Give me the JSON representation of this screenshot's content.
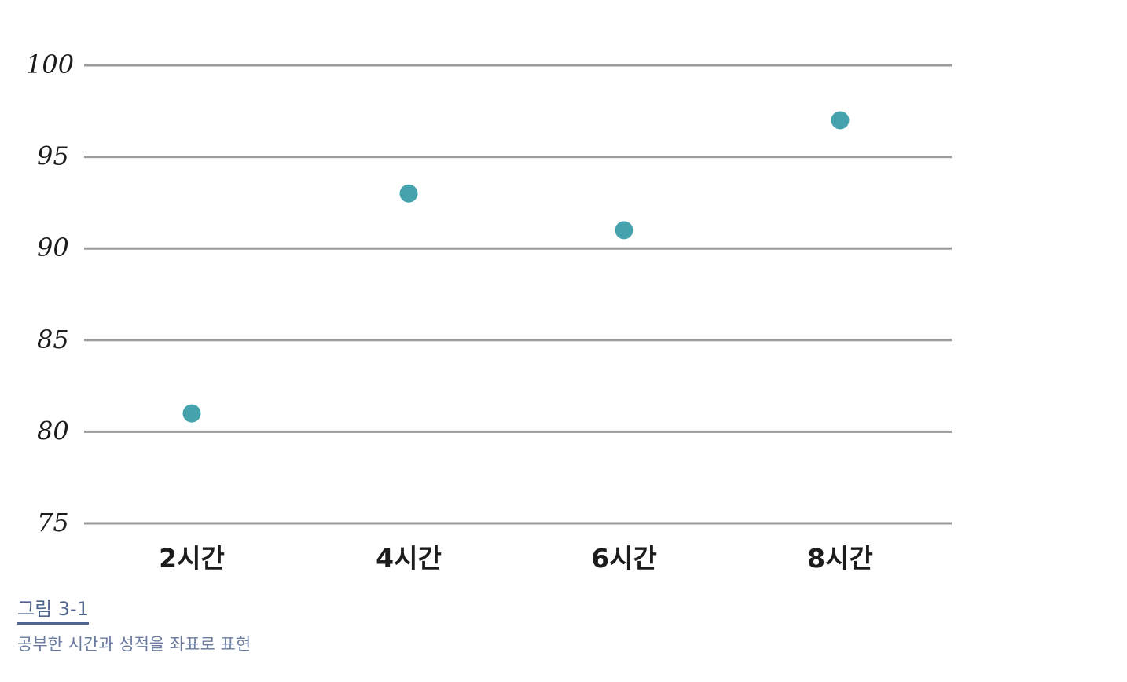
{
  "chart_data": {
    "type": "scatter",
    "categories": [
      "2시간",
      "4시간",
      "6시간",
      "8시간"
    ],
    "values": [
      81,
      93,
      91,
      97
    ],
    "ylim": [
      75,
      100
    ],
    "yticks": [
      "75",
      "80",
      "85",
      "90",
      "95",
      "100"
    ],
    "grid": true,
    "point_color": "#46a3ad"
  },
  "caption": {
    "title": "그림 3-1",
    "text": "공부한 시간과 성적을 좌표로 표현"
  }
}
